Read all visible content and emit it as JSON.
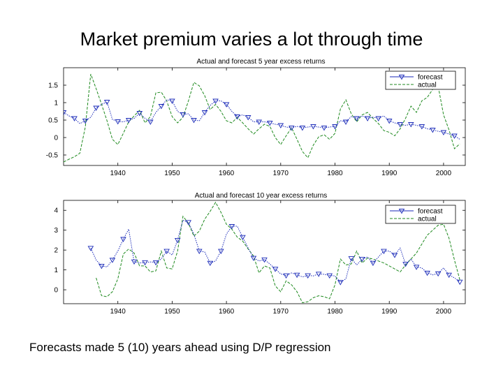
{
  "slide": {
    "title": "Market premium varies a lot through time",
    "caption": "Forecasts made 5 (10) years ahead using D/P regression"
  },
  "colors": {
    "forecast": "#1a2ab8",
    "actual": "#1f8a1f",
    "axis": "#000000"
  },
  "chart_data": [
    {
      "type": "line",
      "title": "Actual and forecast 5 year excess returns",
      "xlabel": "",
      "ylabel": "",
      "xlim": [
        1930,
        2004
      ],
      "ylim": [
        -0.8,
        2.0
      ],
      "x_ticks": [
        1940,
        1950,
        1960,
        1970,
        1980,
        1990,
        2000
      ],
      "y_ticks": [
        -0.5,
        0,
        0.5,
        1,
        1.5
      ],
      "y_tick_labels": [
        "-0.5",
        "0",
        "0.5",
        "1",
        "1.5"
      ],
      "legend": [
        "forecast",
        "actual"
      ],
      "legend_position": "top-right",
      "series": [
        {
          "name": "forecast",
          "style": "line with triangle markers",
          "x": [
            1930,
            1931,
            1932,
            1933,
            1934,
            1935,
            1936,
            1937,
            1938,
            1939,
            1940,
            1941,
            1942,
            1943,
            1944,
            1945,
            1946,
            1947,
            1948,
            1949,
            1950,
            1951,
            1952,
            1953,
            1954,
            1955,
            1956,
            1957,
            1958,
            1959,
            1960,
            1961,
            1962,
            1963,
            1964,
            1965,
            1966,
            1967,
            1968,
            1969,
            1970,
            1971,
            1972,
            1973,
            1974,
            1975,
            1976,
            1977,
            1978,
            1979,
            1980,
            1981,
            1982,
            1983,
            1984,
            1985,
            1986,
            1987,
            1988,
            1989,
            1990,
            1991,
            1992,
            1993,
            1994,
            1995,
            1996,
            1997,
            1998,
            1999,
            2000,
            2001,
            2002,
            2003
          ],
          "y": [
            0.72,
            0.62,
            0.55,
            0.4,
            0.48,
            0.58,
            0.85,
            0.95,
            1.02,
            0.52,
            0.46,
            0.45,
            0.5,
            0.55,
            0.7,
            0.55,
            0.45,
            0.72,
            0.9,
            1.08,
            1.05,
            0.75,
            0.66,
            0.68,
            0.5,
            0.48,
            0.72,
            0.92,
            1.05,
            1.05,
            0.95,
            0.75,
            0.6,
            0.65,
            0.58,
            0.45,
            0.45,
            0.45,
            0.42,
            0.38,
            0.35,
            0.3,
            0.28,
            0.32,
            0.28,
            0.3,
            0.32,
            0.3,
            0.28,
            0.3,
            0.32,
            0.48,
            0.45,
            0.6,
            0.55,
            0.62,
            0.55,
            0.58,
            0.55,
            0.62,
            0.48,
            0.42,
            0.38,
            0.35,
            0.38,
            0.35,
            0.32,
            0.25,
            0.22,
            0.18,
            0.15,
            0.1,
            0.05,
            -0.05
          ]
        },
        {
          "name": "actual",
          "style": "line",
          "x": [
            1930,
            1931,
            1932,
            1933,
            1934,
            1935,
            1936,
            1937,
            1938,
            1939,
            1940,
            1941,
            1942,
            1943,
            1944,
            1945,
            1946,
            1947,
            1948,
            1949,
            1950,
            1951,
            1952,
            1953,
            1954,
            1955,
            1956,
            1957,
            1958,
            1959,
            1960,
            1961,
            1962,
            1963,
            1964,
            1965,
            1966,
            1967,
            1968,
            1969,
            1970,
            1971,
            1972,
            1973,
            1974,
            1975,
            1976,
            1977,
            1978,
            1979,
            1980,
            1981,
            1982,
            1983,
            1984,
            1985,
            1986,
            1987,
            1988,
            1989,
            1990,
            1991,
            1992,
            1993,
            1994,
            1995,
            1996,
            1997,
            1998,
            1999,
            2000,
            2001,
            2002,
            2003
          ],
          "y": [
            -0.7,
            -0.62,
            -0.55,
            -0.45,
            0.3,
            1.82,
            1.4,
            0.95,
            0.48,
            -0.05,
            -0.2,
            0.12,
            0.45,
            0.62,
            0.78,
            0.42,
            0.6,
            1.28,
            1.3,
            1.05,
            0.6,
            0.42,
            0.58,
            1.05,
            1.58,
            1.48,
            1.2,
            0.8,
            0.95,
            0.75,
            0.48,
            0.42,
            0.58,
            0.42,
            0.25,
            0.1,
            0.25,
            0.38,
            0.32,
            0.0,
            -0.2,
            0.05,
            0.28,
            -0.05,
            -0.4,
            -0.58,
            -0.22,
            0.02,
            0.08,
            -0.05,
            0.12,
            0.82,
            1.08,
            0.68,
            0.45,
            0.65,
            0.72,
            0.55,
            0.4,
            0.2,
            0.15,
            0.05,
            0.25,
            0.55,
            0.9,
            0.72,
            1.05,
            1.15,
            1.38,
            1.48,
            0.65,
            0.22,
            -0.32,
            -0.18
          ]
        }
      ]
    },
    {
      "type": "line",
      "title": "Actual and forecast 10 year excess returns",
      "xlabel": "",
      "ylabel": "",
      "xlim": [
        1930,
        2004
      ],
      "ylim": [
        -0.7,
        4.5
      ],
      "x_ticks": [
        1940,
        1950,
        1960,
        1970,
        1980,
        1990,
        2000
      ],
      "y_ticks": [
        0,
        1,
        2,
        3,
        4
      ],
      "y_tick_labels": [
        "0",
        "1",
        "2",
        "3",
        "4"
      ],
      "legend": [
        "forecast",
        "actual"
      ],
      "legend_position": "top-right",
      "series": [
        {
          "name": "forecast",
          "style": "line with triangle markers",
          "x": [
            1935,
            1936,
            1937,
            1938,
            1939,
            1940,
            1941,
            1942,
            1943,
            1944,
            1945,
            1946,
            1947,
            1948,
            1949,
            1950,
            1951,
            1952,
            1953,
            1954,
            1955,
            1956,
            1957,
            1958,
            1959,
            1960,
            1961,
            1962,
            1963,
            1964,
            1965,
            1966,
            1967,
            1968,
            1969,
            1970,
            1971,
            1972,
            1973,
            1974,
            1975,
            1976,
            1977,
            1978,
            1979,
            1980,
            1981,
            1982,
            1983,
            1984,
            1985,
            1986,
            1987,
            1988,
            1989,
            1990,
            1991,
            1992,
            1993,
            1994,
            1995,
            1996,
            1997,
            1998,
            1999,
            2000,
            2001,
            2002,
            2003
          ],
          "y": [
            2.1,
            1.5,
            1.2,
            1.15,
            1.5,
            1.95,
            2.55,
            3.05,
            1.42,
            1.35,
            1.38,
            1.4,
            1.38,
            1.55,
            1.95,
            1.75,
            2.5,
            3.5,
            3.4,
            2.8,
            1.95,
            1.9,
            1.35,
            1.45,
            1.95,
            2.8,
            3.2,
            3.2,
            2.65,
            2.1,
            1.6,
            1.45,
            1.52,
            1.3,
            1.05,
            0.8,
            0.72,
            0.85,
            0.75,
            0.65,
            0.72,
            0.7,
            0.8,
            0.78,
            0.72,
            0.7,
            0.38,
            0.55,
            1.58,
            1.25,
            1.55,
            1.65,
            1.35,
            1.65,
            1.95,
            1.95,
            1.75,
            2.1,
            1.3,
            1.55,
            1.15,
            1.1,
            0.85,
            0.75,
            0.82,
            1.1,
            0.75,
            0.6,
            0.4
          ]
        },
        {
          "name": "actual",
          "style": "line",
          "x": [
            1936,
            1937,
            1938,
            1939,
            1940,
            1941,
            1942,
            1943,
            1944,
            1945,
            1946,
            1947,
            1948,
            1949,
            1950,
            1951,
            1952,
            1953,
            1954,
            1955,
            1956,
            1957,
            1958,
            1959,
            1960,
            1961,
            1962,
            1963,
            1964,
            1965,
            1966,
            1967,
            1968,
            1969,
            1970,
            1971,
            1972,
            1973,
            1974,
            1975,
            1976,
            1977,
            1978,
            1979,
            1980,
            1981,
            1982,
            1983,
            1984,
            1985,
            1986,
            1987,
            1988,
            1989,
            1990,
            1991,
            1992,
            1993,
            1994,
            1995,
            1996,
            1997,
            1998,
            1999,
            2000,
            2001,
            2002,
            2003
          ],
          "y": [
            0.6,
            -0.3,
            -0.35,
            -0.1,
            0.55,
            1.8,
            2.05,
            1.85,
            1.2,
            1.2,
            0.9,
            0.95,
            1.95,
            1.1,
            1.05,
            1.95,
            3.7,
            3.35,
            2.7,
            2.95,
            3.55,
            3.95,
            4.4,
            3.9,
            3.3,
            3.05,
            2.65,
            2.45,
            2.05,
            1.7,
            0.85,
            1.2,
            1.1,
            0.2,
            -0.1,
            0.45,
            0.25,
            -0.1,
            -0.65,
            -0.6,
            -0.4,
            -0.3,
            -0.35,
            -0.45,
            0.25,
            1.55,
            1.25,
            1.3,
            1.95,
            1.35,
            1.6,
            1.55,
            1.45,
            1.35,
            1.2,
            1.05,
            0.9,
            1.25,
            1.55,
            1.85,
            2.3,
            2.75,
            3.0,
            3.25,
            3.3,
            2.6,
            1.5,
            0.5
          ]
        }
      ]
    }
  ]
}
